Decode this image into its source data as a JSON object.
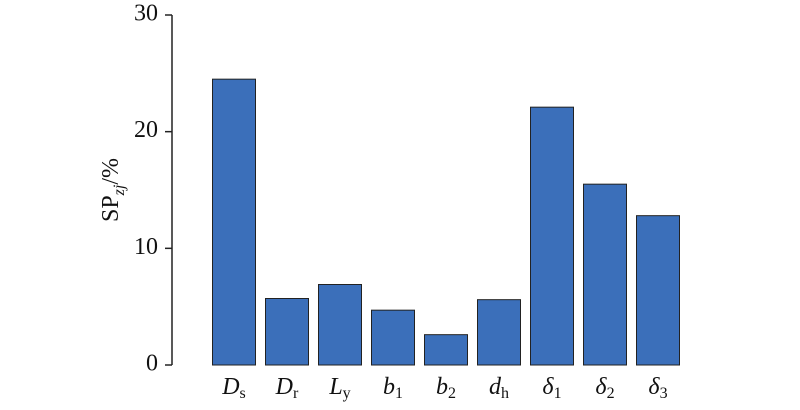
{
  "chart_data": {
    "type": "bar",
    "y_label": {
      "main": "SP",
      "sub": "zj",
      "tail": "/%"
    },
    "categories": [
      [
        "D",
        "s"
      ],
      [
        "D",
        "r"
      ],
      [
        "L",
        "y"
      ],
      [
        "b",
        "1"
      ],
      [
        "b",
        "2"
      ],
      [
        "d",
        "h"
      ],
      [
        "δ",
        "1"
      ],
      [
        "δ",
        "2"
      ],
      [
        "δ",
        "3"
      ]
    ],
    "values": [
      24.5,
      5.7,
      6.9,
      4.7,
      2.6,
      5.6,
      22.1,
      15.5,
      12.8
    ],
    "color": "#3b6fba",
    "ylim": [
      0,
      30
    ],
    "yticks": [
      0,
      10,
      20,
      30
    ],
    "grid": false
  }
}
